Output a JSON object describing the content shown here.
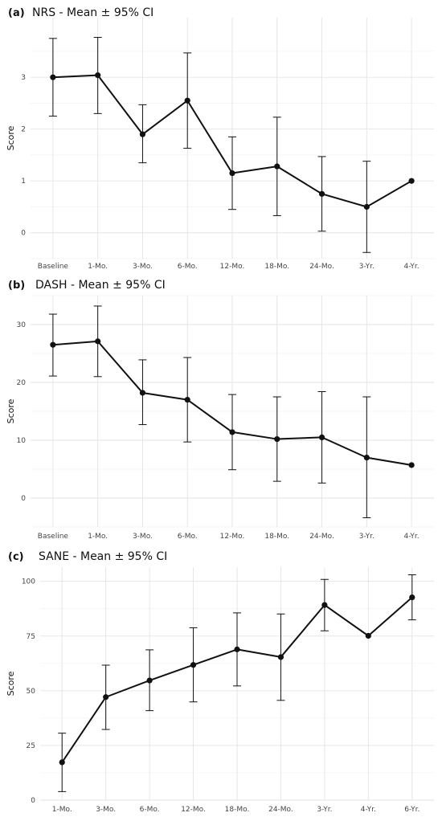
{
  "chart_data": [
    {
      "type": "line",
      "panel_label": "(a)",
      "title": "NRS - Mean ± 95% CI",
      "xlabel": "",
      "ylabel": "Score",
      "categories": [
        "Baseline",
        "1-Mo.",
        "3-Mo.",
        "6-Mo.",
        "12-Mo.",
        "18-Mo.",
        "24-Mo.",
        "3-Yr.",
        "4-Yr."
      ],
      "series": [
        {
          "values": [
            3.0,
            3.04,
            1.9,
            2.55,
            1.15,
            1.28,
            0.75,
            0.5,
            1.0
          ],
          "ci_lower": [
            2.25,
            2.3,
            1.35,
            1.63,
            0.45,
            0.33,
            0.03,
            -0.38,
            1.0
          ],
          "ci_upper": [
            3.75,
            3.77,
            2.47,
            3.47,
            1.85,
            2.23,
            1.47,
            1.38,
            1.0
          ]
        }
      ],
      "ylim": [
        -0.5,
        4.15
      ],
      "yticks": [
        0,
        1,
        2,
        3
      ],
      "grid": true,
      "legend": "none"
    },
    {
      "type": "line",
      "panel_label": "(b)",
      "title": "DASH - Mean ± 95% CI",
      "xlabel": "",
      "ylabel": "Score",
      "categories": [
        "Baseline",
        "1-Mo.",
        "3-Mo.",
        "6-Mo.",
        "12-Mo.",
        "18-Mo.",
        "24-Mo.",
        "3-Yr.",
        "4-Yr."
      ],
      "series": [
        {
          "values": [
            26.5,
            27.1,
            18.2,
            17.0,
            11.4,
            10.2,
            10.5,
            7.0,
            5.7
          ],
          "ci_lower": [
            21.1,
            21.0,
            12.7,
            9.7,
            4.9,
            2.9,
            2.6,
            -3.4,
            5.7
          ],
          "ci_upper": [
            31.8,
            33.2,
            23.9,
            24.3,
            17.9,
            17.5,
            18.4,
            17.5,
            5.7
          ]
        }
      ],
      "ylim": [
        -5,
        35
      ],
      "yticks": [
        0,
        10,
        20,
        30
      ],
      "grid": true,
      "legend": "none"
    },
    {
      "type": "line",
      "panel_label": "(c)",
      "title": "SANE - Mean ± 95% CI",
      "xlabel": "",
      "ylabel": "Score",
      "categories": [
        "1-Mo.",
        "3-Mo.",
        "6-Mo.",
        "12-Mo.",
        "18-Mo.",
        "24-Mo.",
        "3-Yr.",
        "4-Yr.",
        "6-Yr."
      ],
      "series": [
        {
          "values": [
            17.3,
            47.1,
            54.7,
            61.8,
            68.9,
            65.4,
            89.2,
            75.1,
            92.7
          ],
          "ci_lower": [
            3.9,
            32.3,
            40.9,
            44.9,
            52.2,
            45.6,
            77.4,
            75.1,
            82.4
          ],
          "ci_upper": [
            30.6,
            61.7,
            68.7,
            78.8,
            85.6,
            85.1,
            100.9,
            75.1,
            103.0
          ]
        }
      ],
      "ylim": [
        0,
        106.5
      ],
      "yticks": [
        0,
        25,
        50,
        75,
        100
      ],
      "grid": true,
      "legend": "none"
    }
  ]
}
